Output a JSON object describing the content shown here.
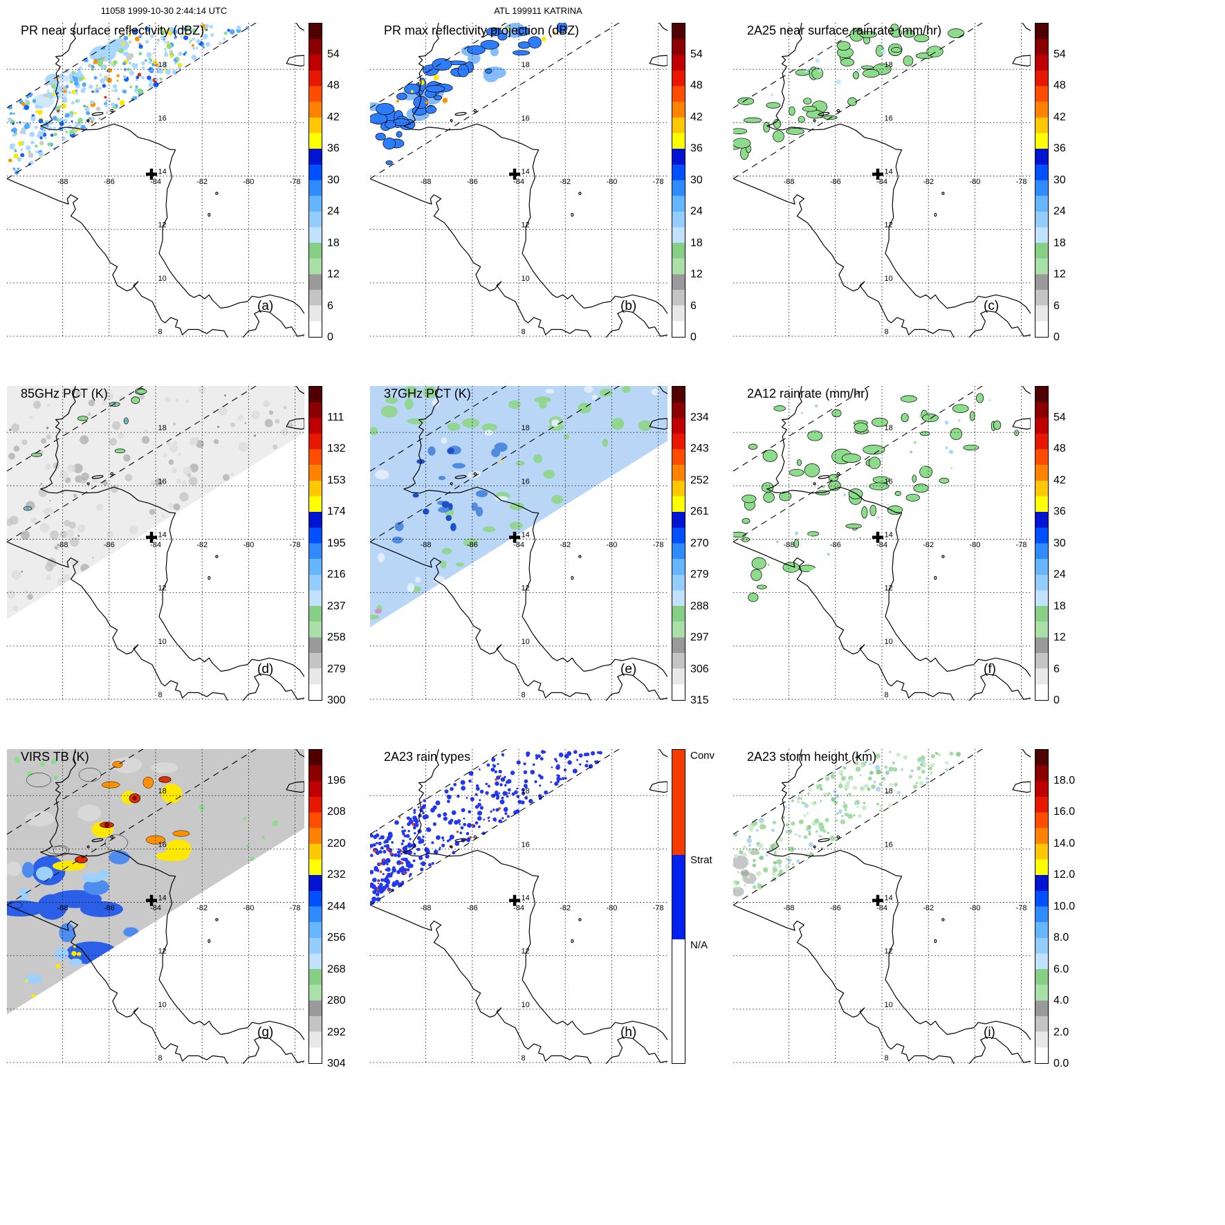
{
  "header": {
    "left": "11058 1999-10-30 2:44:14 UTC",
    "center": "ATL 199911 KATRINA"
  },
  "map": {
    "lon_labels": [
      "-88",
      "-86",
      "-84",
      "-82",
      "-80",
      "-78"
    ],
    "lat_labels": [
      "18",
      "16",
      "14",
      "12",
      "10",
      "8"
    ]
  },
  "colors": {
    "speckle_pale_blue": "#a8d8ff",
    "speckle_mid_blue": "#55a8ff",
    "speckle_deep_blue": "#1a5fff",
    "speckle_gray": "#cccccc",
    "green": "#8cdc8c",
    "green_mid": "#93d693",
    "green_pale": "#cdeccd",
    "core_blue": "#bfe9ff",
    "blob_blue": "#2e7dff",
    "blob_blue_light": "#85bcff",
    "gray_swath": "#ededed",
    "gray_noise1": "#dcdcdc",
    "gray_noise2": "#c6c6c6",
    "gray_noise3": "#b0b0b0",
    "pct37_base": "#b9d6f6",
    "pct37_pale": "#e2edfb",
    "pct37_mid": "#4f8ce0",
    "pct37_dark": "#1b50c8",
    "pink": "#cf8fd0",
    "virs_base": "#c9c9c9",
    "virs_blue": "#2b5fe8",
    "virs_blue2": "#4f8cf0",
    "virs_cyan": "#9cd0ff",
    "yellow": "#ffe800",
    "orange": "#ff9100",
    "red": "#e03000",
    "dark_red": "#8f0000",
    "raintype_blue": "#2336f0",
    "raintype_red": "#f03800",
    "storm_green": "#a5dba5",
    "storm_green_pale": "#cdeccd",
    "storm_blue": "#b9d6f6",
    "storm_gray": "#c6c6c6"
  },
  "colorbars": {
    "standard": {
      "segments": [
        {
          "c": "#500000",
          "f": 5
        },
        {
          "c": "#8b0000",
          "f": 5
        },
        {
          "c": "#c00000",
          "f": 5
        },
        {
          "c": "#e81800",
          "f": 5
        },
        {
          "c": "#ff4d00",
          "f": 5
        },
        {
          "c": "#ff8200",
          "f": 5
        },
        {
          "c": "#ffc800",
          "f": 5
        },
        {
          "c": "#ffff00",
          "f": 5
        },
        {
          "c": "#0014d2",
          "f": 5
        },
        {
          "c": "#0050ff",
          "f": 5
        },
        {
          "c": "#2e8cff",
          "f": 5
        },
        {
          "c": "#66b5ff",
          "f": 5
        },
        {
          "c": "#93ccff",
          "f": 5
        },
        {
          "c": "#c0e2ff",
          "f": 5
        },
        {
          "c": "#86d086",
          "f": 5
        },
        {
          "c": "#a8e0a8",
          "f": 5
        },
        {
          "c": "#9a9a9a",
          "f": 5
        },
        {
          "c": "#c4c4c4",
          "f": 5
        },
        {
          "c": "#e8e8e8",
          "f": 5
        },
        {
          "c": "#ffffff",
          "f": 5
        }
      ]
    },
    "raintype": {
      "segments": [
        {
          "c": "#f43b00",
          "f": 33.5
        },
        {
          "c": "#0022ee",
          "f": 27
        },
        {
          "c": "#ffffff",
          "f": 39.5
        }
      ]
    }
  },
  "panels": [
    {
      "id": "a",
      "letter": "(a)",
      "title": "PR near surface reflectivity (dBZ)",
      "bar": "standard",
      "ticks": [
        "54",
        "48",
        "42",
        "36",
        "30",
        "24",
        "18",
        "12",
        "6",
        "0"
      ]
    },
    {
      "id": "b",
      "letter": "(b)",
      "title": "PR max reflectivity projection (dBZ)",
      "bar": "standard",
      "ticks": [
        "54",
        "48",
        "42",
        "36",
        "30",
        "24",
        "18",
        "12",
        "6",
        "0"
      ]
    },
    {
      "id": "c",
      "letter": "(c)",
      "title": "2A25 near surface rainrate (mm/hr)",
      "bar": "standard",
      "ticks": [
        "54",
        "48",
        "42",
        "36",
        "30",
        "24",
        "18",
        "12",
        "6",
        "0"
      ]
    },
    {
      "id": "d",
      "letter": "(d)",
      "title": "85GHz PCT (K)",
      "bar": "standard",
      "ticks": [
        "111",
        "132",
        "153",
        "174",
        "195",
        "216",
        "237",
        "258",
        "279",
        "300"
      ]
    },
    {
      "id": "e",
      "letter": "(e)",
      "title": "37GHz PCT (K)",
      "bar": "standard",
      "ticks": [
        "234",
        "243",
        "252",
        "261",
        "270",
        "279",
        "288",
        "297",
        "306",
        "315"
      ]
    },
    {
      "id": "f",
      "letter": "(f)",
      "title": "2A12 rainrate (mm/hr)",
      "bar": "standard",
      "ticks": [
        "54",
        "48",
        "42",
        "36",
        "30",
        "24",
        "18",
        "12",
        "6",
        "0"
      ]
    },
    {
      "id": "g",
      "letter": "(g)",
      "title": "VIRS TB (K)",
      "bar": "standard",
      "ticks": [
        "196",
        "208",
        "220",
        "232",
        "244",
        "256",
        "268",
        "280",
        "292",
        "304"
      ]
    },
    {
      "id": "h",
      "letter": "(h)",
      "title": "2A23 rain types",
      "bar": "raintype",
      "ticks": [
        "Conv",
        "Strat",
        "N/A"
      ],
      "tick_fracs": [
        0.3,
        33.5,
        60.5
      ]
    },
    {
      "id": "i",
      "letter": "(i)",
      "title": "2A23 storm height (km)",
      "bar": "standard",
      "ticks": [
        "18.0",
        "16.0",
        "14.0",
        "12.0",
        "10.0",
        "8.0",
        "6.0",
        "4.0",
        "2.0",
        "0.0"
      ]
    }
  ],
  "chart_data": [
    {
      "panel": "(a)",
      "type": "heatmap",
      "title": "PR near surface reflectivity (dBZ)",
      "units": "dBZ",
      "colorbar_ticks": [
        54,
        48,
        42,
        36,
        30,
        24,
        18,
        12,
        6,
        0
      ],
      "colorbar_range": [
        0,
        60
      ],
      "lon_range": [
        -90.4,
        -77.6
      ],
      "lat_range": [
        8,
        19.7
      ],
      "lon_gridlines": [
        -88,
        -86,
        -84,
        -82,
        -80,
        -78
      ],
      "lat_gridlines": [
        18,
        16,
        14,
        12,
        10,
        8
      ],
      "storm_center": {
        "lon": -84.2,
        "lat": 14.1
      },
      "annotations": [
        "dashed TRMM PR swath edges"
      ]
    },
    {
      "panel": "(b)",
      "type": "heatmap",
      "title": "PR max reflectivity projection (dBZ)",
      "units": "dBZ",
      "colorbar_ticks": [
        54,
        48,
        42,
        36,
        30,
        24,
        18,
        12,
        6,
        0
      ],
      "colorbar_range": [
        0,
        60
      ],
      "lon_range": [
        -90.4,
        -77.6
      ],
      "lat_range": [
        8,
        19.7
      ],
      "storm_center": {
        "lon": -84.2,
        "lat": 14.1
      }
    },
    {
      "panel": "(c)",
      "type": "heatmap",
      "title": "2A25 near surface rainrate (mm/hr)",
      "units": "mm/hr",
      "colorbar_ticks": [
        54,
        48,
        42,
        36,
        30,
        24,
        18,
        12,
        6,
        0
      ],
      "colorbar_range": [
        0,
        60
      ],
      "lon_range": [
        -90.4,
        -77.6
      ],
      "lat_range": [
        8,
        19.7
      ],
      "storm_center": {
        "lon": -84.2,
        "lat": 14.1
      }
    },
    {
      "panel": "(d)",
      "type": "heatmap",
      "title": "85GHz PCT (K)",
      "units": "K",
      "colorbar_ticks": [
        111,
        132,
        153,
        174,
        195,
        216,
        237,
        258,
        279,
        300
      ],
      "colorbar_range": [
        90,
        300
      ],
      "lon_range": [
        -90.4,
        -77.6
      ],
      "lat_range": [
        8,
        19.7
      ],
      "storm_center": {
        "lon": -84.2,
        "lat": 14.1
      }
    },
    {
      "panel": "(e)",
      "type": "heatmap",
      "title": "37GHz PCT (K)",
      "units": "K",
      "colorbar_ticks": [
        234,
        243,
        252,
        261,
        270,
        279,
        288,
        297,
        306,
        315
      ],
      "colorbar_range": [
        225,
        315
      ],
      "lon_range": [
        -90.4,
        -77.6
      ],
      "lat_range": [
        8,
        19.7
      ],
      "storm_center": {
        "lon": -84.2,
        "lat": 14.1
      }
    },
    {
      "panel": "(f)",
      "type": "heatmap",
      "title": "2A12 rainrate (mm/hr)",
      "units": "mm/hr",
      "colorbar_ticks": [
        54,
        48,
        42,
        36,
        30,
        24,
        18,
        12,
        6,
        0
      ],
      "colorbar_range": [
        0,
        60
      ],
      "lon_range": [
        -90.4,
        -77.6
      ],
      "lat_range": [
        8,
        19.7
      ],
      "storm_center": {
        "lon": -84.2,
        "lat": 14.1
      }
    },
    {
      "panel": "(g)",
      "type": "heatmap",
      "title": "VIRS TB (K)",
      "units": "K",
      "colorbar_ticks": [
        196,
        208,
        220,
        232,
        244,
        256,
        268,
        280,
        292,
        304
      ],
      "colorbar_range": [
        184,
        304
      ],
      "lon_range": [
        -90.4,
        -77.6
      ],
      "lat_range": [
        8,
        19.7
      ],
      "storm_center": {
        "lon": -84.2,
        "lat": 14.1
      }
    },
    {
      "panel": "(h)",
      "type": "heatmap",
      "title": "2A23 rain types",
      "units": "category",
      "categories": [
        "Conv",
        "Strat",
        "N/A"
      ],
      "lon_range": [
        -90.4,
        -77.6
      ],
      "lat_range": [
        8,
        19.7
      ],
      "storm_center": {
        "lon": -84.2,
        "lat": 14.1
      }
    },
    {
      "panel": "(i)",
      "type": "heatmap",
      "title": "2A23 storm height (km)",
      "units": "km",
      "colorbar_ticks": [
        18.0,
        16.0,
        14.0,
        12.0,
        10.0,
        8.0,
        6.0,
        4.0,
        2.0,
        0.0
      ],
      "colorbar_range": [
        0,
        20
      ],
      "lon_range": [
        -90.4,
        -77.6
      ],
      "lat_range": [
        8,
        19.7
      ],
      "storm_center": {
        "lon": -84.2,
        "lat": 14.1
      }
    }
  ]
}
